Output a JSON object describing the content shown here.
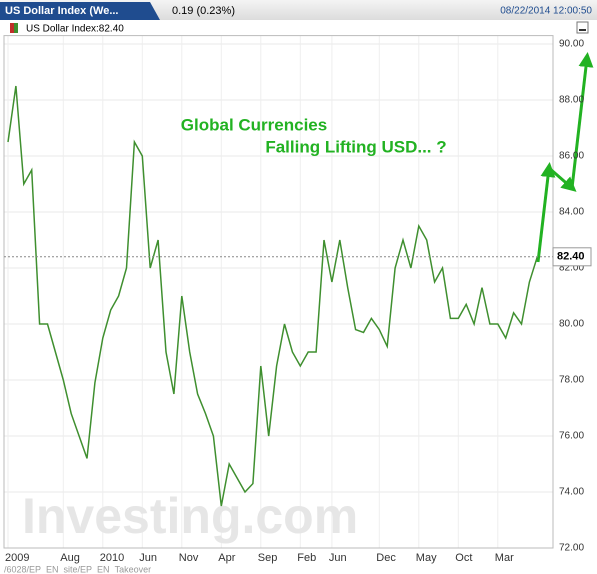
{
  "header": {
    "tab": "US Dollar Index (We...",
    "change": "0.19 (0.23%)",
    "timestamp": "08/22/2014 12:00:50"
  },
  "chart_data": {
    "type": "line",
    "legend": "US Dollar Index:82.40",
    "annotation": [
      "Global Currencies",
      "Falling Lifting USD... ?"
    ],
    "watermark": "Investing.com",
    "footer": "/6028/EP_EN_site/EP_EN_Takeover",
    "color": "#3f8f2f",
    "last_price": {
      "value": 82.4,
      "label": "82.40"
    },
    "categories": [
      "2009",
      null,
      null,
      null,
      null,
      null,
      null,
      "Aug",
      null,
      null,
      null,
      null,
      "2010",
      null,
      null,
      null,
      null,
      "Jun",
      null,
      null,
      null,
      null,
      "Nov",
      null,
      null,
      null,
      null,
      "Apr",
      null,
      null,
      null,
      null,
      "Sep",
      null,
      null,
      null,
      null,
      "Feb",
      null,
      null,
      null,
      "Jun",
      null,
      null,
      null,
      null,
      null,
      "Dec",
      null,
      null,
      null,
      null,
      "May",
      null,
      null,
      null,
      null,
      "Oct",
      null,
      null,
      null,
      null,
      "Mar",
      null,
      null,
      null,
      null,
      null
    ],
    "values": [
      86.5,
      88.5,
      85,
      85.5,
      80,
      80,
      79,
      78,
      76.8,
      76,
      75.2,
      77.9,
      79.5,
      80.5,
      81,
      82,
      86.5,
      86,
      82,
      83,
      79,
      77.5,
      81,
      79,
      77.5,
      76.8,
      76,
      73.5,
      75,
      74.5,
      74,
      74.3,
      78.5,
      76,
      78.5,
      80,
      79,
      78.5,
      79,
      79,
      83,
      81.5,
      83,
      81.3,
      79.8,
      79.7,
      80.2,
      79.8,
      79.2,
      82,
      83,
      82,
      83.5,
      83,
      81.5,
      82,
      80.2,
      80.2,
      80.7,
      80,
      81.3,
      80,
      80,
      79.5,
      80.4,
      80,
      81.5,
      82.4
    ],
    "ylim": [
      72,
      90.3
    ],
    "yticks": [
      {
        "value": 72,
        "label": "72.00"
      },
      {
        "value": 74,
        "label": "74.00"
      },
      {
        "value": 76,
        "label": "76.00"
      },
      {
        "value": 78,
        "label": "78.00"
      },
      {
        "value": 80,
        "label": "80.00"
      },
      {
        "value": 82,
        "label": "82.00"
      },
      {
        "value": 84,
        "label": "84.00"
      },
      {
        "value": 86,
        "label": "86.00"
      },
      {
        "value": 88,
        "label": "88.00"
      },
      {
        "value": 90,
        "label": "90.00"
      }
    ],
    "grid": true
  }
}
